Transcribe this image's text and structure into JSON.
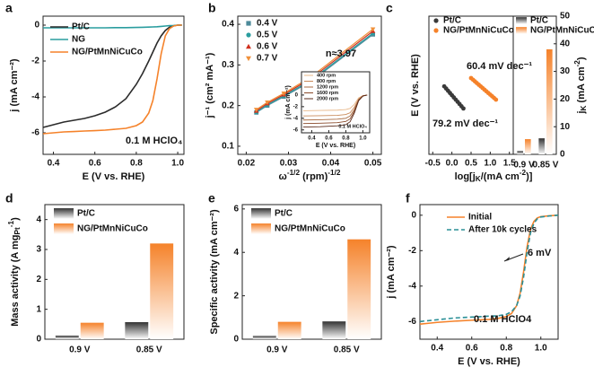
{
  "chart_data": [
    {
      "type": "line",
      "label": "a",
      "xlabel": "E (V vs. RHE)",
      "ylabel": "j (mA cm⁻²)",
      "x": [
        0.35,
        0.4,
        0.45,
        0.5,
        0.55,
        0.6,
        0.65,
        0.7,
        0.75,
        0.8,
        0.83,
        0.86,
        0.88,
        0.9,
        0.92,
        0.94,
        0.96,
        0.98,
        1.0,
        1.02
      ],
      "series": [
        {
          "name": "Pt/C",
          "color": "#2b2b2b",
          "values": [
            -5.7,
            -5.55,
            -5.4,
            -5.3,
            -5.2,
            -5.05,
            -4.85,
            -4.55,
            -4.1,
            -3.3,
            -2.7,
            -2.0,
            -1.5,
            -1.0,
            -0.6,
            -0.3,
            -0.12,
            -0.04,
            0,
            0
          ]
        },
        {
          "name": "NG",
          "color": "#2a9d9f",
          "values": [
            -0.15,
            -0.15,
            -0.15,
            -0.15,
            -0.15,
            -0.15,
            -0.15,
            -0.14,
            -0.14,
            -0.13,
            -0.12,
            -0.11,
            -0.1,
            -0.09,
            -0.07,
            -0.05,
            -0.03,
            -0.02,
            0,
            0
          ]
        },
        {
          "name": "NG/PtMnNiCuCo",
          "color": "#f5822a",
          "values": [
            -6.05,
            -6.0,
            -5.95,
            -5.93,
            -5.9,
            -5.88,
            -5.85,
            -5.8,
            -5.75,
            -5.6,
            -5.4,
            -4.9,
            -4.2,
            -3.0,
            -1.6,
            -0.6,
            -0.2,
            -0.05,
            0,
            0
          ]
        }
      ],
      "xlim": [
        0.35,
        1.03
      ],
      "xticks": [
        0.4,
        0.6,
        0.8,
        {
          "value": 1,
          "label": "1.0"
        }
      ],
      "ylim": [
        -7.2,
        0.5
      ],
      "yticks": [
        0,
        -2,
        -4,
        -6
      ],
      "legend": "upper left",
      "annotations": [
        "0.1 M HClO₄"
      ]
    },
    {
      "type": "scatter",
      "label": "b",
      "fit_line": true,
      "xlabel": [
        {
          "text": "ω"
        },
        {
          "text": "-1/2",
          "shift": "sup"
        },
        {
          "text": " (rpm)"
        },
        {
          "text": "-1/2",
          "shift": "sup"
        }
      ],
      "ylabel": "j⁻¹ (cm² mA⁻¹)",
      "x": [
        0.0224,
        0.025,
        0.0289,
        0.0354,
        0.05
      ],
      "series": [
        {
          "name": "0.4 V",
          "color": "#4d8a9a",
          "marker": "square",
          "values": [
            0.183,
            0.2,
            0.222,
            0.26,
            0.375
          ]
        },
        {
          "name": "0.5 V",
          "color": "#2a9d9f",
          "marker": "circle",
          "values": [
            0.184,
            0.202,
            0.224,
            0.263,
            0.378
          ]
        },
        {
          "name": "0.6 V",
          "color": "#d0301e",
          "marker": "triangle",
          "values": [
            0.187,
            0.205,
            0.227,
            0.267,
            0.383
          ]
        },
        {
          "name": "0.7 V",
          "color": "#f0903a",
          "marker": "triangle-down",
          "values": [
            0.19,
            0.208,
            0.23,
            0.271,
            0.388
          ]
        }
      ],
      "xlim": [
        0.018,
        0.052
      ],
      "xticks": [
        0.02,
        0.03,
        0.04,
        0.05
      ],
      "ylim": [
        0.08,
        0.42
      ],
      "yticks": [
        0.1,
        0.2,
        0.3,
        0.4
      ],
      "legend": "upper left",
      "annotations": [
        "n≈3.97"
      ]
    },
    {
      "type": "line",
      "xlabel": "E (V vs. RHE)",
      "ylabel": "j (mA cm⁻²)",
      "x": [
        0.3,
        0.5,
        0.7,
        0.8,
        0.85,
        0.9,
        0.95,
        1.0,
        1.05
      ],
      "series": [
        {
          "name": "400 rpm",
          "color": "#e8b88a",
          "values": [
            -2.7,
            -2.65,
            -2.6,
            -2.5,
            -2.3,
            -1.6,
            -0.5,
            -0.1,
            0
          ]
        },
        {
          "name": "800 rpm",
          "color": "#c98a5a",
          "values": [
            -3.6,
            -3.55,
            -3.5,
            -3.35,
            -3.05,
            -2.1,
            -0.7,
            -0.12,
            0
          ]
        },
        {
          "name": "1200 rpm",
          "color": "#a86a40",
          "values": [
            -4.3,
            -4.25,
            -4.15,
            -4.0,
            -3.6,
            -2.5,
            -0.8,
            -0.15,
            0
          ]
        },
        {
          "name": "1600 rpm",
          "color": "#8a4a2a",
          "values": [
            -4.9,
            -4.85,
            -4.75,
            -4.55,
            -4.1,
            -2.8,
            -0.9,
            -0.15,
            0
          ]
        },
        {
          "name": "2000 rpm",
          "color": "#5a2a1a",
          "values": [
            -5.5,
            -5.45,
            -5.3,
            -5.1,
            -4.6,
            -3.1,
            -1.0,
            -0.18,
            0
          ]
        }
      ],
      "xlim": [
        0.28,
        1.08
      ],
      "xticks": [
        0.4,
        0.6,
        0.8,
        {
          "value": 1,
          "label": "1.0"
        }
      ],
      "ylim": [
        -6.5,
        4
      ],
      "yticks": [
        0,
        -2,
        -4,
        -6
      ],
      "legend": "upper left",
      "annotations": [
        "0.1 M HClO₄"
      ]
    },
    {
      "type": "scatter",
      "label": "c",
      "xlabel": [
        {
          "text": "log[j"
        },
        {
          "text": "K",
          "shift": "sub"
        },
        {
          "text": "/(mA cm"
        },
        {
          "text": "-2",
          "shift": "sup"
        },
        {
          "text": ")]"
        }
      ],
      "ylabel": "E (V vs. RHE)",
      "series": [
        {
          "name": "Pt/C",
          "color": "#3a3a3a",
          "marker": "circle",
          "x": [
            -0.2,
            -0.15,
            -0.1,
            -0.05,
            0,
            0.05,
            0.1,
            0.15,
            0.2,
            0.25,
            0.3
          ],
          "values": [
            0.873,
            0.869,
            0.865,
            0.861,
            0.857,
            0.853,
            0.849,
            0.845,
            0.841,
            0.837,
            0.833
          ]
        },
        {
          "name": "NG/PtMnNiCuCo",
          "color": "#f5822a",
          "marker": "circle",
          "x": [
            0.5,
            0.55,
            0.6,
            0.65,
            0.7,
            0.75,
            0.8,
            0.85,
            0.9,
            0.95,
            1.0,
            1.05,
            1.1,
            1.15
          ],
          "values": [
            0.888,
            0.885,
            0.882,
            0.879,
            0.876,
            0.873,
            0.87,
            0.867,
            0.864,
            0.861,
            0.858,
            0.855,
            0.852,
            0.849
          ]
        }
      ],
      "xlim": [
        -0.6,
        1.6
      ],
      "xticks": [
        -0.5,
        {
          "value": 0,
          "label": "0.0"
        },
        0.5,
        {
          "value": 1,
          "label": "1.0"
        },
        1.5
      ],
      "ylim": [
        0.75,
        1.0
      ],
      "legend": "upper left",
      "annotations": [
        "60.4 mV dec⁻¹",
        "79.2 mV dec⁻¹"
      ]
    },
    {
      "type": "bar",
      "yaxis": "right",
      "ylabel": [
        {
          "text": "j"
        },
        {
          "text": "K",
          "shift": "sub"
        },
        {
          "text": " (mA cm"
        },
        {
          "text": "-2",
          "shift": "sup"
        },
        {
          "text": ")"
        }
      ],
      "categories": [
        "0.9 V",
        "0.85 V"
      ],
      "series": [
        {
          "name": "Pt/C",
          "color": "#333333",
          "values": [
            1.2,
            5.8
          ]
        },
        {
          "name": "NG/PtMnNiCuCo",
          "color": "#f5822a",
          "values": [
            5.5,
            38
          ]
        }
      ],
      "ylim": [
        0,
        50
      ],
      "yticks": [
        0,
        10,
        20,
        30,
        40,
        50
      ],
      "legend": "upper left"
    },
    {
      "type": "bar",
      "label": "d",
      "ylabel": [
        {
          "text": "Mass activity (A mg"
        },
        {
          "text": "Pt",
          "shift": "sub"
        },
        {
          "text": "-1",
          "shift": "sup"
        },
        {
          "text": ")"
        }
      ],
      "categories": [
        "0.9 V",
        "0.85 V"
      ],
      "series": [
        {
          "name": "Pt/C",
          "color": "#333333",
          "values": [
            0.12,
            0.57
          ]
        },
        {
          "name": "NG/PtMnNiCuCo",
          "color": "#f5822a",
          "values": [
            0.55,
            3.2
          ]
        }
      ],
      "ylim": [
        0,
        4.5
      ],
      "yticks": [
        0,
        1,
        2,
        3,
        4
      ],
      "legend": "upper left"
    },
    {
      "type": "bar",
      "label": "e",
      "ylabel": "Specific activity (mA cm⁻²)",
      "categories": [
        "0.9 V",
        "0.85 V"
      ],
      "series": [
        {
          "name": "Pt/C",
          "color": "#333333",
          "values": [
            0.15,
            0.82
          ]
        },
        {
          "name": "NG/PtMnNiCuCo",
          "color": "#f5822a",
          "values": [
            0.8,
            4.6
          ]
        }
      ],
      "ylim": [
        0,
        6.2
      ],
      "yticks": [
        0,
        2,
        4,
        6
      ],
      "legend": "upper left"
    },
    {
      "type": "line",
      "label": "f",
      "xlabel": "E (V vs. RHE)",
      "ylabel": "j (mA cm⁻²)",
      "x": [
        0.3,
        0.35,
        0.4,
        0.5,
        0.6,
        0.7,
        0.75,
        0.8,
        0.83,
        0.86,
        0.88,
        0.9,
        0.92,
        0.94,
        0.96,
        0.98,
        1.0,
        1.05,
        1.1
      ],
      "series": [
        {
          "name": "Initial",
          "color": "#f5822a",
          "values": [
            -6.15,
            -6.1,
            -6.05,
            -5.98,
            -5.93,
            -5.88,
            -5.83,
            -5.72,
            -5.55,
            -5.1,
            -4.4,
            -3.2,
            -1.8,
            -0.8,
            -0.35,
            -0.15,
            -0.08,
            -0.03,
            0
          ]
        },
        {
          "name": "After 10k cycles",
          "color": "#2a8f96",
          "dash": true,
          "values": [
            -6.0,
            -5.95,
            -5.9,
            -5.8,
            -5.75,
            -5.7,
            -5.68,
            -5.6,
            -5.45,
            -5.1,
            -4.55,
            -3.5,
            -2.1,
            -1.0,
            -0.45,
            -0.2,
            -0.1,
            -0.04,
            0
          ]
        }
      ],
      "xlim": [
        0.3,
        1.1
      ],
      "xticks": [
        0.4,
        0.6,
        0.8,
        {
          "value": 1,
          "label": "1.0"
        }
      ],
      "ylim": [
        -7,
        0.6
      ],
      "yticks": [
        0,
        -2,
        -4,
        -6
      ],
      "legend": "upper left",
      "annotations": [
        "0.1 M HClO4",
        "6 mV"
      ]
    }
  ]
}
